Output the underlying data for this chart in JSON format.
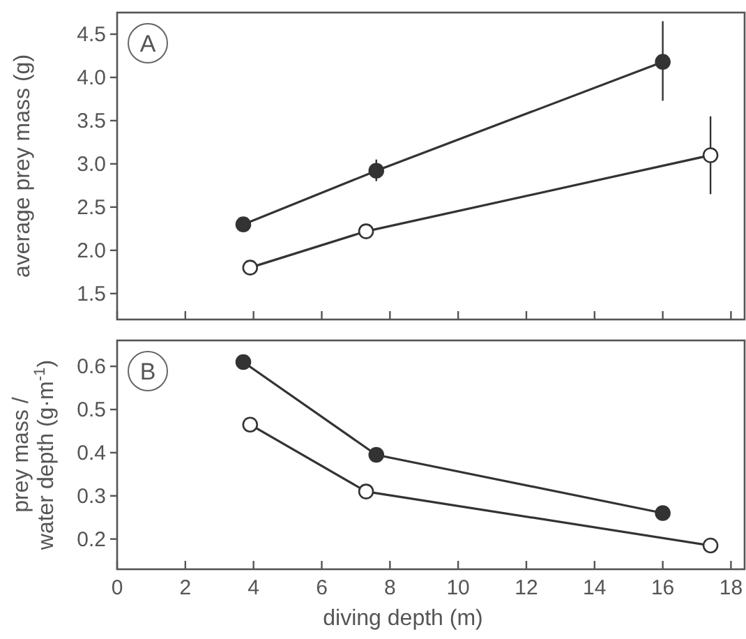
{
  "chart_data": [
    {
      "type": "line",
      "ylabel": "average prey mass (g)",
      "annotations": [
        "A"
      ],
      "xlim": [
        0,
        18.4
      ],
      "xticks": [
        {
          "value": 0,
          "label": null
        },
        {
          "value": 2,
          "label": null
        },
        {
          "value": 4,
          "label": null
        },
        {
          "value": 6,
          "label": null
        },
        {
          "value": 8,
          "label": null
        },
        {
          "value": 10,
          "label": null
        },
        {
          "value": 12,
          "label": null
        },
        {
          "value": 14,
          "label": null
        },
        {
          "value": 16,
          "label": null
        },
        {
          "value": 18,
          "label": null
        }
      ],
      "ylim": [
        1.2,
        4.75
      ],
      "yticks": [
        {
          "value": 1.5,
          "label": "1.5"
        },
        {
          "value": 2,
          "label": "2.0"
        },
        {
          "value": 2.5,
          "label": "2.5"
        },
        {
          "value": 3,
          "label": "3.0"
        },
        {
          "value": 3.5,
          "label": "3.5"
        },
        {
          "value": 4,
          "label": "4.0"
        },
        {
          "value": 4.5,
          "label": "4.5"
        }
      ],
      "tick_labels": "y",
      "grid": false,
      "marker": "circle",
      "line_style": "solid",
      "series": [
        {
          "color": "#333333",
          "x": [
            3.7,
            7.6,
            16
          ],
          "values": [
            2.3,
            2.92,
            4.18
          ],
          "errors": [
            null,
            [
              2.8,
              3.05
            ],
            [
              3.73,
              4.65
            ]
          ]
        },
        {
          "color": "#333333",
          "x": [
            3.9,
            7.3,
            17.4
          ],
          "values": [
            1.8,
            2.22,
            3.1
          ],
          "errors": [
            null,
            [
              2.15,
              2.3
            ],
            [
              2.65,
              3.55
            ]
          ]
        }
      ]
    },
    {
      "type": "line",
      "xlabel": "diving depth (m)",
      "ylabel": "prey mass /\nwater depth (g·m$^{-1}$)",
      "annotations": [
        "B"
      ],
      "xlim": [
        0,
        18.4
      ],
      "xticks": [
        0,
        2,
        4,
        6,
        8,
        10,
        12,
        14,
        16,
        18
      ],
      "ylim": [
        0.13,
        0.66
      ],
      "yticks": [
        0.2,
        0.3,
        0.4,
        0.5,
        0.6
      ],
      "grid": false,
      "marker": "circle",
      "line_style": "solid",
      "series": [
        {
          "color": "#333333",
          "x": [
            3.7,
            7.6,
            16
          ],
          "values": [
            0.61,
            0.395,
            0.26
          ]
        },
        {
          "color": "#333333",
          "x": [
            3.9,
            7.3,
            17.4
          ],
          "values": [
            0.465,
            0.31,
            0.185
          ]
        }
      ]
    }
  ]
}
